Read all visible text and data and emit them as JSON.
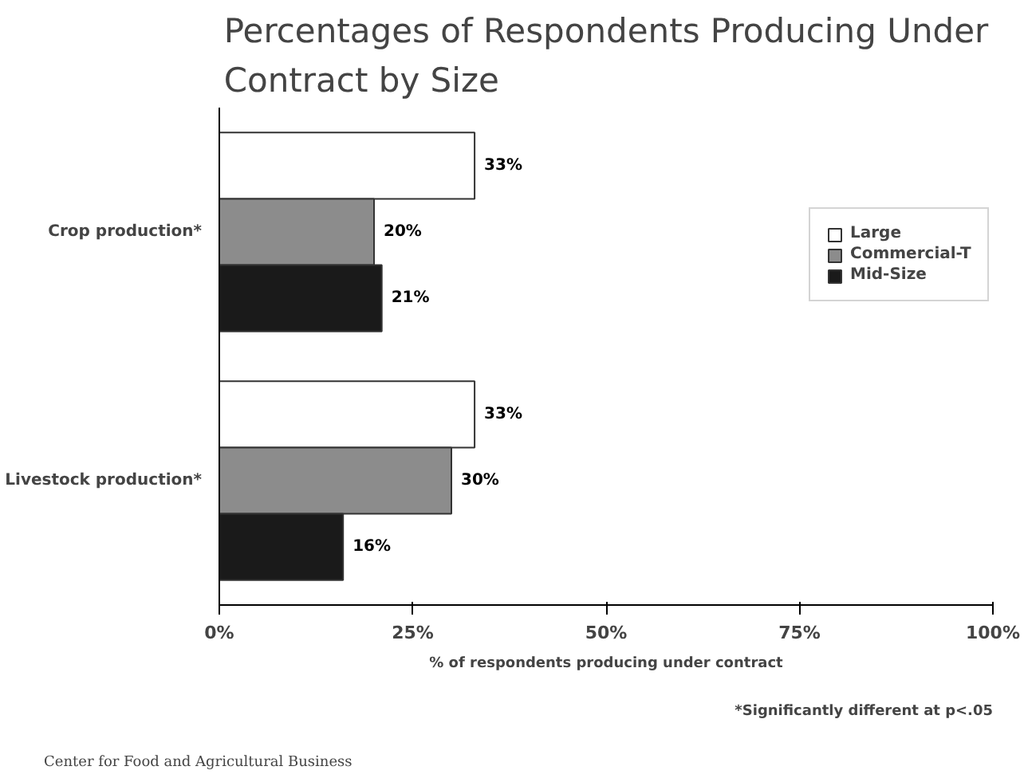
{
  "chart_data": {
    "type": "bar",
    "orientation": "horizontal",
    "title": "Percentages of Respondents Producing Under Contract by Size",
    "xlabel": "% of respondents producing under contract",
    "categories": [
      "Crop production*",
      "Livestock production*"
    ],
    "series": [
      {
        "name": "Large",
        "color": "#ffffff",
        "values": [
          33,
          33
        ],
        "value_labels": [
          "33%",
          "33%"
        ]
      },
      {
        "name": "Commercial-T",
        "color": "#8c8c8c",
        "values": [
          20,
          30
        ],
        "value_labels": [
          "20%",
          "30%"
        ]
      },
      {
        "name": "Mid-Size",
        "color": "#1a1a1a",
        "values": [
          21,
          16
        ],
        "value_labels": [
          "21%",
          "16%"
        ]
      }
    ],
    "xlim": [
      0,
      100
    ],
    "xticks": [
      {
        "value": 0,
        "label": "0%"
      },
      {
        "value": 25,
        "label": "25%"
      },
      {
        "value": 50,
        "label": "50%"
      },
      {
        "value": 75,
        "label": "75%"
      },
      {
        "value": 100,
        "label": "100%"
      }
    ],
    "grid": false,
    "legend": "right",
    "annotations": [
      "*Significantly different at p<.05",
      "Center for Food and Agricultural Business"
    ]
  }
}
